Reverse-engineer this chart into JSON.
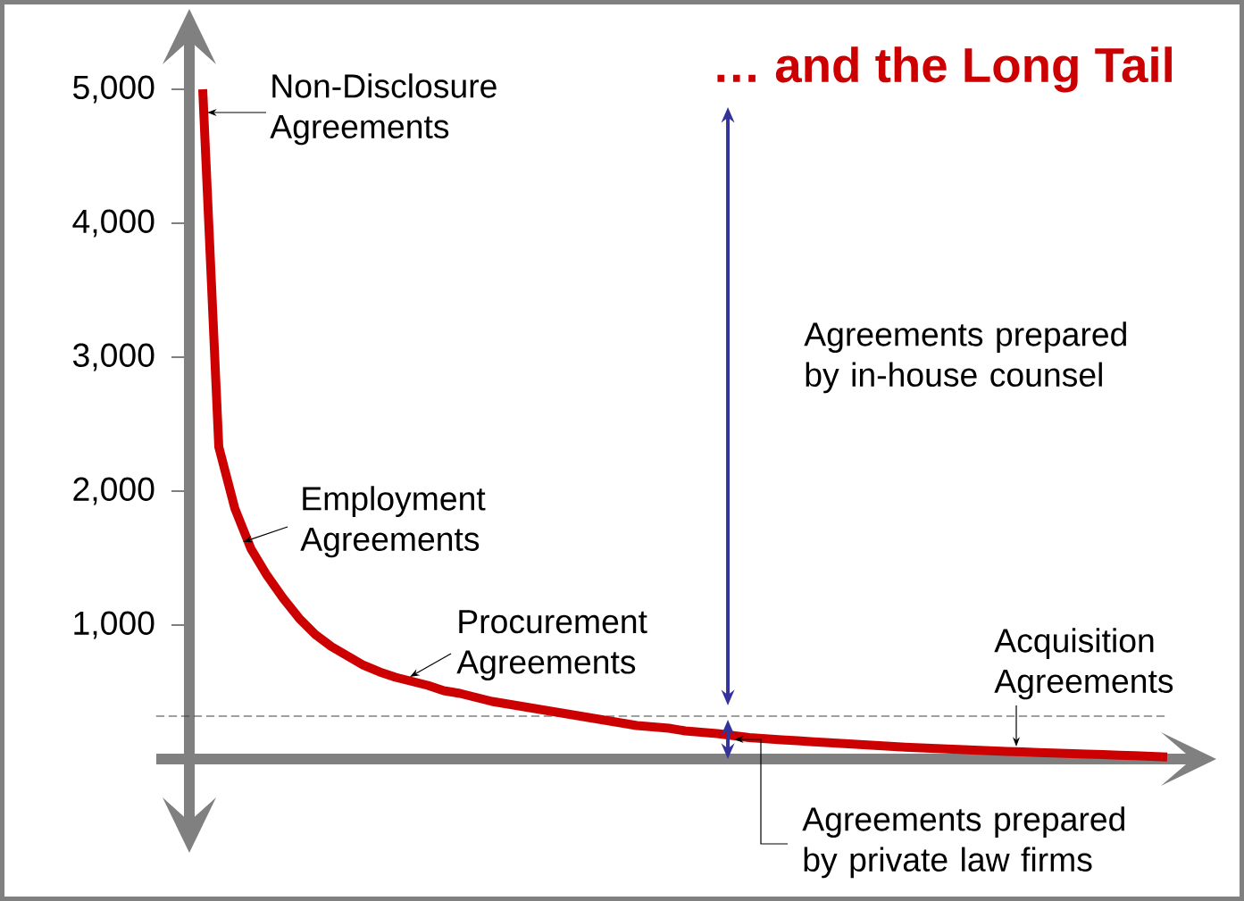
{
  "chart_data": {
    "type": "line",
    "title": "… and the Long Tail",
    "categories": [
      null,
      null,
      null,
      null,
      null,
      null,
      null,
      null,
      null,
      null,
      null,
      null,
      null,
      null,
      null,
      null,
      null,
      null,
      null,
      null,
      null,
      null,
      null,
      null,
      null,
      null,
      null,
      null,
      null,
      null,
      null,
      null,
      null,
      null,
      null,
      null,
      null,
      null,
      null,
      null,
      null,
      null,
      null,
      null,
      null,
      null,
      null,
      null,
      null,
      null,
      null,
      null,
      null,
      null,
      null,
      null,
      null,
      null,
      null,
      null,
      null
    ],
    "values": [
      5000,
      2330,
      1870,
      1570,
      1370,
      1200,
      1050,
      930,
      840,
      770,
      700,
      650,
      610,
      580,
      550,
      510,
      490,
      460,
      430,
      410,
      390,
      370,
      350,
      330,
      310,
      290,
      270,
      250,
      240,
      230,
      210,
      200,
      190,
      175,
      160,
      152,
      144,
      136,
      128,
      121,
      114,
      107,
      100,
      93,
      87,
      81,
      76,
      71,
      66,
      61,
      57,
      53,
      49,
      45,
      41,
      37,
      33,
      29,
      25,
      20,
      15
    ],
    "color": "#cc0000",
    "ylim": [
      -500,
      5400
    ],
    "yticks": [
      {
        "value": 1000,
        "label": "1,000"
      },
      {
        "value": 2000,
        "label": "2,000"
      },
      {
        "value": 3000,
        "label": "3,000"
      },
      {
        "value": 4000,
        "label": "4,000"
      },
      {
        "value": 5000,
        "label": "5,000"
      }
    ],
    "tick_labels": "y",
    "ref_lines": [
      {
        "axis": "y",
        "value": 320,
        "color": "#404040",
        "line_style": "dashed"
      }
    ],
    "annotations": [
      "Non-Disclosure Agreements",
      "Employment Agreements",
      "Procurement Agreements",
      "Acquisition Agreements",
      "Agreements prepared by in-house counsel",
      "Agreements prepared by private law firms"
    ]
  }
}
